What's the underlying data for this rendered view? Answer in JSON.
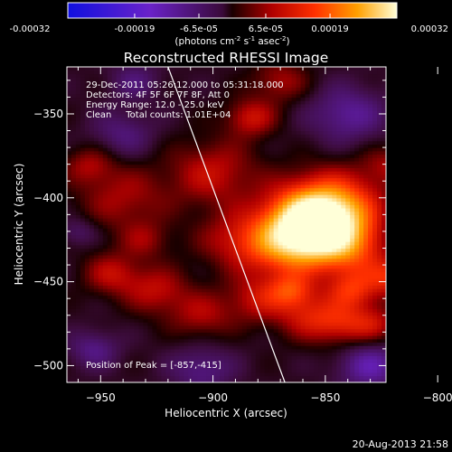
{
  "colorbar": {
    "tick_labels": [
      "-0.00032",
      "-0.00019",
      "-6.5e-05",
      "6.5e-05",
      "0.00019",
      "0.00032"
    ],
    "unit_main": "(photons cm",
    "unit_exp1": "-2",
    "unit_s": " s",
    "unit_exp2": "-1",
    "unit_asec": " asec",
    "unit_exp3": "-2",
    "unit_close": ")",
    "range": [
      -0.00032,
      0.00032
    ],
    "colormap": "rhessi-blue-purple-red-yellow-white"
  },
  "chart_data": {
    "type": "heatmap",
    "title": "Reconstructed RHESSI Image",
    "xlabel": "Heliocentric X (arcsec)",
    "ylabel": "Heliocentric Y (arcsec)",
    "xlim": [
      -965,
      -823
    ],
    "ylim": [
      -510,
      -322
    ],
    "x_ticks": [
      -950,
      -900,
      -850,
      -800
    ],
    "y_ticks": [
      -500,
      -450,
      -400,
      -350
    ],
    "x_tick_labels": [
      "−950",
      "−900",
      "−850",
      "−800"
    ],
    "y_tick_labels": [
      "−500",
      "−450",
      "−400",
      "−350"
    ],
    "peak": {
      "x": -857,
      "y": -415
    },
    "limb_line": [
      {
        "x": -920,
        "y": -322
      },
      {
        "x": -868,
        "y": -510
      }
    ],
    "annotations": [
      "29-Dec-2011 05:26:12.000 to 05:31:18.000",
      "Detectors: 4F 5F 6F 7F 8F, Att 0",
      "Energy Range: 12.0 - 25.0 keV",
      "Clean     Total counts: 1.01E+04"
    ],
    "peak_label": "Position of Peak = [-857,-415]",
    "blobs": [
      {
        "x": -857,
        "y": -415,
        "w": 14,
        "v": 1.0
      },
      {
        "x": -845,
        "y": -405,
        "w": 15,
        "v": 0.55
      },
      {
        "x": -840,
        "y": -430,
        "w": 12,
        "v": 0.45
      },
      {
        "x": -868,
        "y": -430,
        "w": 13,
        "v": 0.45
      },
      {
        "x": -820,
        "y": -447,
        "w": 8,
        "v": 0.4
      },
      {
        "x": -838,
        "y": -455,
        "w": 8,
        "v": 0.4
      },
      {
        "x": -858,
        "y": -470,
        "w": 10,
        "v": 0.32
      },
      {
        "x": -843,
        "y": -475,
        "w": 9,
        "v": 0.32
      },
      {
        "x": -880,
        "y": -460,
        "w": 10,
        "v": 0.3
      },
      {
        "x": -900,
        "y": -385,
        "w": 14,
        "v": 0.32
      },
      {
        "x": -890,
        "y": -425,
        "w": 12,
        "v": 0.28
      },
      {
        "x": -940,
        "y": -400,
        "w": 14,
        "v": 0.26
      },
      {
        "x": -955,
        "y": -380,
        "w": 8,
        "v": 0.24
      },
      {
        "x": -945,
        "y": -445,
        "w": 9,
        "v": 0.3
      },
      {
        "x": -925,
        "y": -455,
        "w": 10,
        "v": 0.3
      },
      {
        "x": -905,
        "y": -470,
        "w": 10,
        "v": 0.26
      },
      {
        "x": -883,
        "y": -352,
        "w": 8,
        "v": 0.34
      },
      {
        "x": -870,
        "y": -330,
        "w": 9,
        "v": 0.26
      },
      {
        "x": -822,
        "y": -380,
        "w": 8,
        "v": 0.22
      },
      {
        "x": -828,
        "y": -475,
        "w": 8,
        "v": 0.28
      },
      {
        "x": -930,
        "y": -425,
        "w": 8,
        "v": 0.2
      },
      {
        "x": -865,
        "y": -455,
        "w": 7,
        "v": 0.35
      },
      {
        "x": -953,
        "y": -490,
        "w": 8,
        "v": -0.25
      },
      {
        "x": -935,
        "y": -330,
        "w": 8,
        "v": -0.2
      },
      {
        "x": -940,
        "y": -362,
        "w": 10,
        "v": -0.22
      },
      {
        "x": -905,
        "y": -502,
        "w": 10,
        "v": -0.25
      },
      {
        "x": -840,
        "y": -350,
        "w": 12,
        "v": -0.3
      },
      {
        "x": -830,
        "y": -500,
        "w": 10,
        "v": -0.35
      },
      {
        "x": -810,
        "y": -420,
        "w": 8,
        "v": -0.2
      },
      {
        "x": -960,
        "y": -420,
        "w": 6,
        "v": -0.18
      }
    ]
  },
  "footer": {
    "timestamp": "20-Aug-2013 21:58"
  }
}
